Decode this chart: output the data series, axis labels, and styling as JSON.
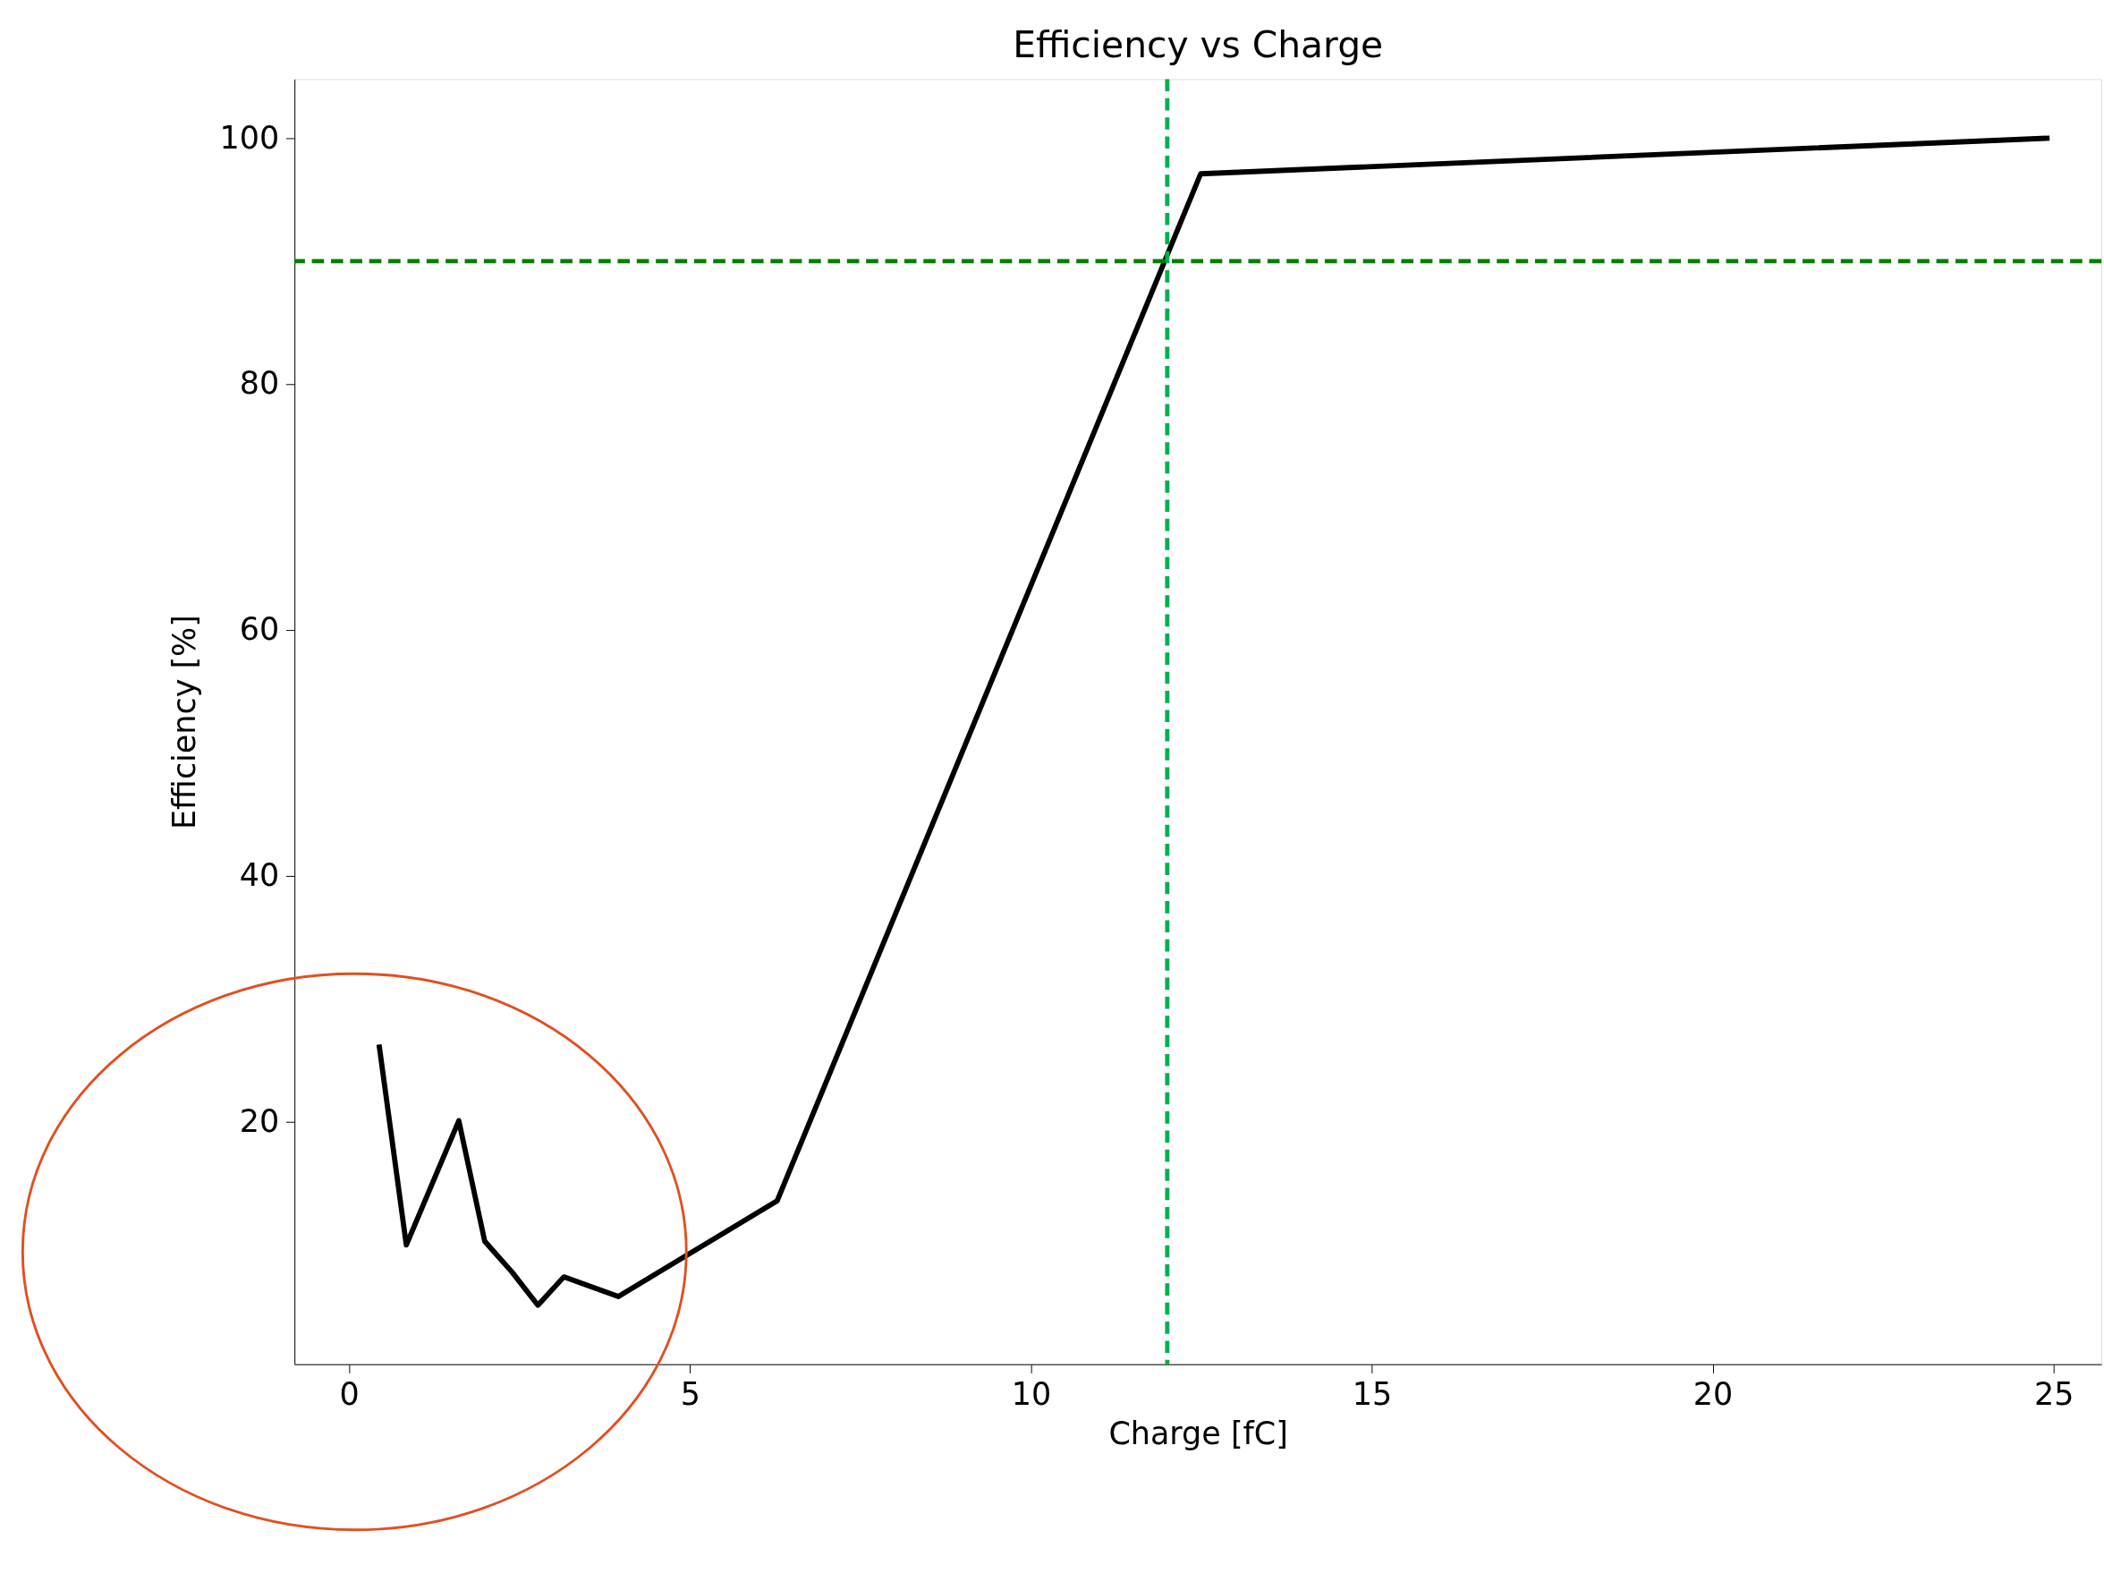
{
  "chart_data": {
    "type": "line",
    "title": "Efficiency vs Charge",
    "xlabel": "Charge [fC]",
    "ylabel": "Efficiency [%]",
    "x": [
      0.44,
      0.84,
      1.61,
      1.99,
      2.39,
      2.77,
      3.15,
      3.95,
      6.28,
      12.49,
      24.94
    ],
    "series": [
      {
        "color": "#000000",
        "values": [
          26.3,
          10.0,
          20.1,
          10.3,
          7.8,
          5.1,
          7.4,
          5.8,
          13.6,
          97.1,
          100.0
        ]
      }
    ],
    "xlim": [
      -0.8,
      25.7
    ],
    "ylim": [
      0.3,
      104.8
    ],
    "xticks": [
      0,
      5,
      10,
      15,
      20,
      25
    ],
    "yticks": [
      20,
      40,
      60,
      80,
      100
    ],
    "ref_lines": [
      {
        "axis": "x",
        "value": 12,
        "color": "#00b050",
        "line_style": "dashed"
      },
      {
        "axis": "y",
        "value": 90,
        "color": "#008000",
        "line_style": "dashed"
      }
    ],
    "grid": false,
    "marker": "none",
    "line_style": "solid"
  }
}
